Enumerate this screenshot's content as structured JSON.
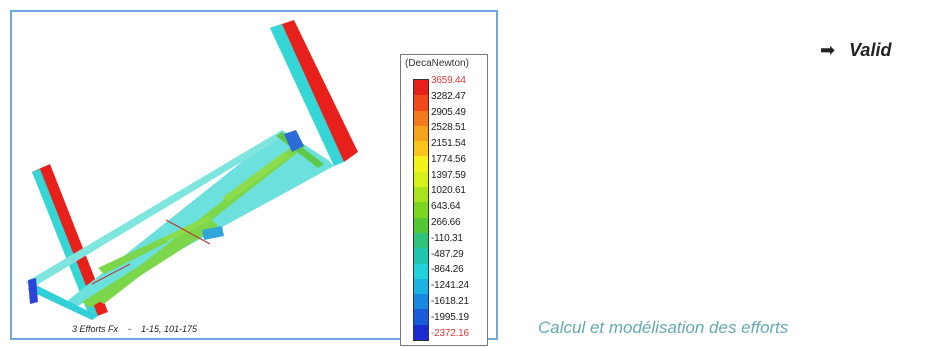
{
  "figure": {
    "caption": "3 Efforts Fx    -    1-15, 101-175",
    "legend": {
      "unit": "(DecaNewton)",
      "values": [
        "3659.44",
        "3282.47",
        "2905.49",
        "2528.51",
        "2151.54",
        "1774.56",
        "1397.59",
        "1020.61",
        "643.64",
        "266.66",
        "-110.31",
        "-487.29",
        "-864.26",
        "-1241.24",
        "-1618.21",
        "-1995.19",
        "-2372.16"
      ],
      "colors": [
        "#e8201c",
        "#f04a1c",
        "#f27b1e",
        "#f5a21e",
        "#f7c51d",
        "#f3f21a",
        "#d6f01c",
        "#a8e31d",
        "#7ad61f",
        "#52c934",
        "#2fc27a",
        "#22c6b0",
        "#21d2d8",
        "#1cb3e3",
        "#1a8ae0",
        "#1a5bd8",
        "#1a2bd0"
      ]
    }
  },
  "side_text": {
    "arrow": "➡",
    "label": "Valid"
  },
  "footer": {
    "title": "Calcul et modélisation des efforts"
  }
}
